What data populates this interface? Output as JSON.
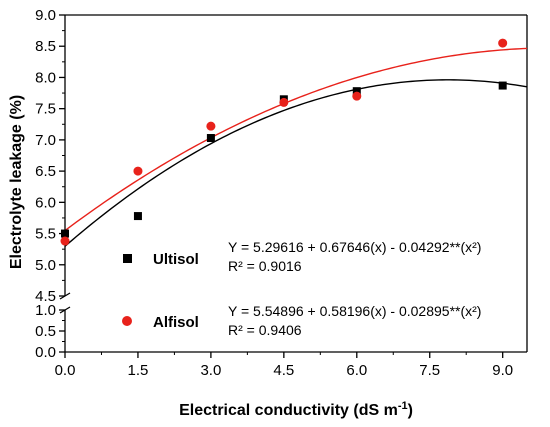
{
  "chart_data": {
    "type": "scatter",
    "xlabel": "Electrical conductivity (dS m-1)",
    "ylabel": "Electrolyte leakage (%)",
    "xlim": [
      0,
      9.5
    ],
    "ylim_upper": [
      4.5,
      9.0
    ],
    "ylim_lower": [
      0,
      1.0
    ],
    "y_axis_break": true,
    "x_ticks": [
      "0.0",
      "1.5",
      "3.0",
      "4.5",
      "6.0",
      "7.5",
      "9.0"
    ],
    "y_ticks_upper": [
      "4.5",
      "5.0",
      "5.5",
      "6.0",
      "6.5",
      "7.0",
      "7.5",
      "8.0",
      "8.5",
      "9.0"
    ],
    "y_ticks_lower": [
      "0.0",
      "0.5",
      "1.0"
    ],
    "grid": false,
    "series": [
      {
        "name": "Ultisol",
        "marker": "square",
        "color": "#000000",
        "x": [
          0,
          1.5,
          3.0,
          4.5,
          6.0,
          9.0
        ],
        "y": [
          5.5,
          5.78,
          7.03,
          7.65,
          7.78,
          7.87
        ],
        "fit": {
          "a": 5.29616,
          "b": 0.67646,
          "c": -0.04292
        },
        "equation": "Y = 5.29616 + 0.67646(x) - 0.04292**(x²)",
        "r2": "R² = 0.9016"
      },
      {
        "name": "Alfisol",
        "marker": "circle",
        "color": "#e8221b",
        "x": [
          0,
          1.5,
          3.0,
          4.5,
          6.0,
          9.0
        ],
        "y": [
          5.38,
          6.5,
          7.22,
          7.6,
          7.7,
          8.55
        ],
        "fit": {
          "a": 5.54896,
          "b": 0.58196,
          "c": -0.02895
        },
        "equation": "Y = 5.54896 + 0.58196(x) - 0.02895**(x²)",
        "r2": "R² = 0.9406"
      }
    ]
  }
}
